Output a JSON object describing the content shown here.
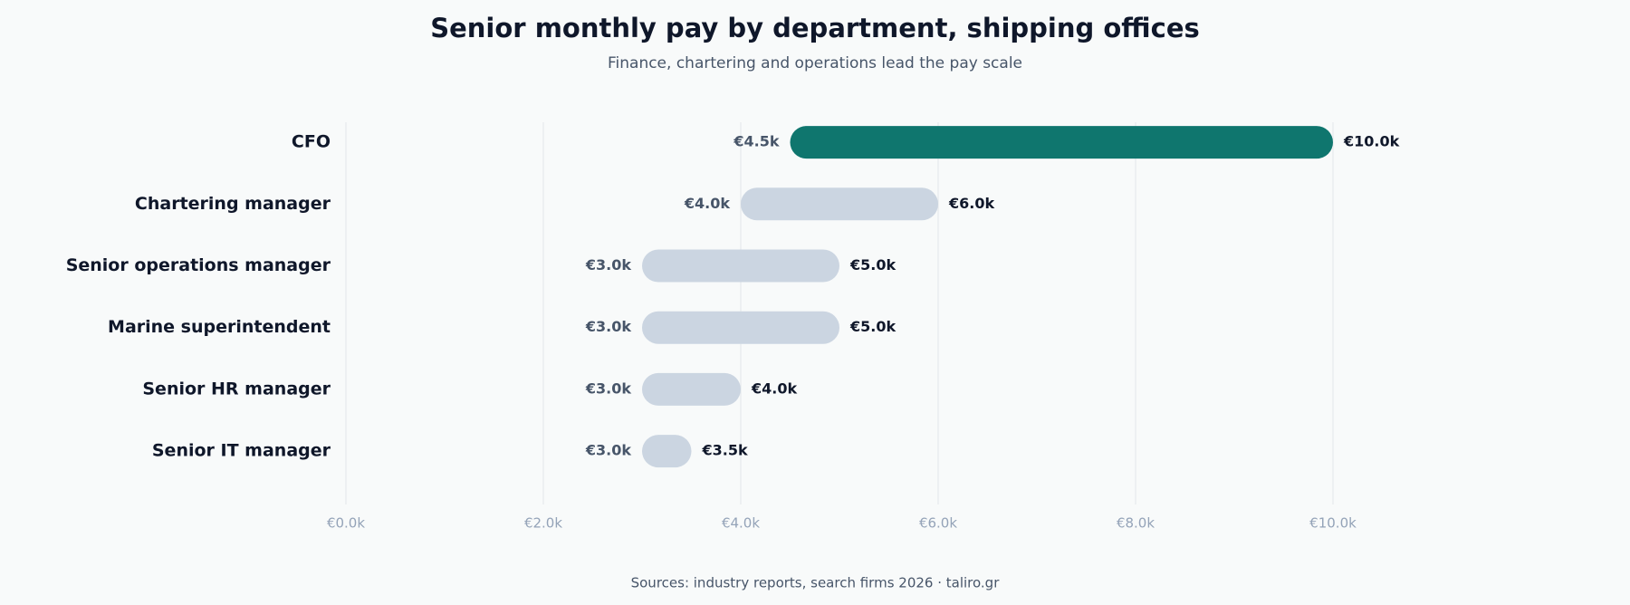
{
  "chart_data": {
    "type": "range",
    "title": "Senior monthly pay by department, shipping offices",
    "subtitle": "Finance, chartering and operations lead the pay scale",
    "source": "Sources: industry reports, search firms 2026 · taliro.gr",
    "categories": [
      "CFO",
      "Chartering manager",
      "Senior operations manager",
      "Marine superintendent",
      "Senior HR manager",
      "Senior IT manager"
    ],
    "series": [
      {
        "values": [
          4500,
          4000,
          3000,
          3000,
          3000,
          3000
        ],
        "value_labels": [
          "€4.5k",
          "€4.0k",
          "€3.0k",
          "€3.0k",
          "€3.0k",
          "€3.0k"
        ]
      },
      {
        "values": [
          10000,
          6000,
          5000,
          5000,
          4000,
          3500
        ],
        "value_labels": [
          "€10.0k",
          "€6.0k",
          "€5.0k",
          "€5.0k",
          "€4.0k",
          "€3.5k"
        ]
      }
    ],
    "bar_colors": [
      "#0f766e",
      "#cbd5e1",
      "#cbd5e1",
      "#cbd5e1",
      "#cbd5e1",
      "#cbd5e1"
    ],
    "xlim": [
      0,
      10000
    ],
    "xticks": [
      {
        "value": 0,
        "label": "€0.0k"
      },
      {
        "value": 2000,
        "label": "€2.0k"
      },
      {
        "value": 4000,
        "label": "€4.0k"
      },
      {
        "value": 6000,
        "label": "€6.0k"
      },
      {
        "value": 8000,
        "label": "€8.0k"
      },
      {
        "value": 10000,
        "label": "€10.0k"
      }
    ],
    "grid": true
  }
}
